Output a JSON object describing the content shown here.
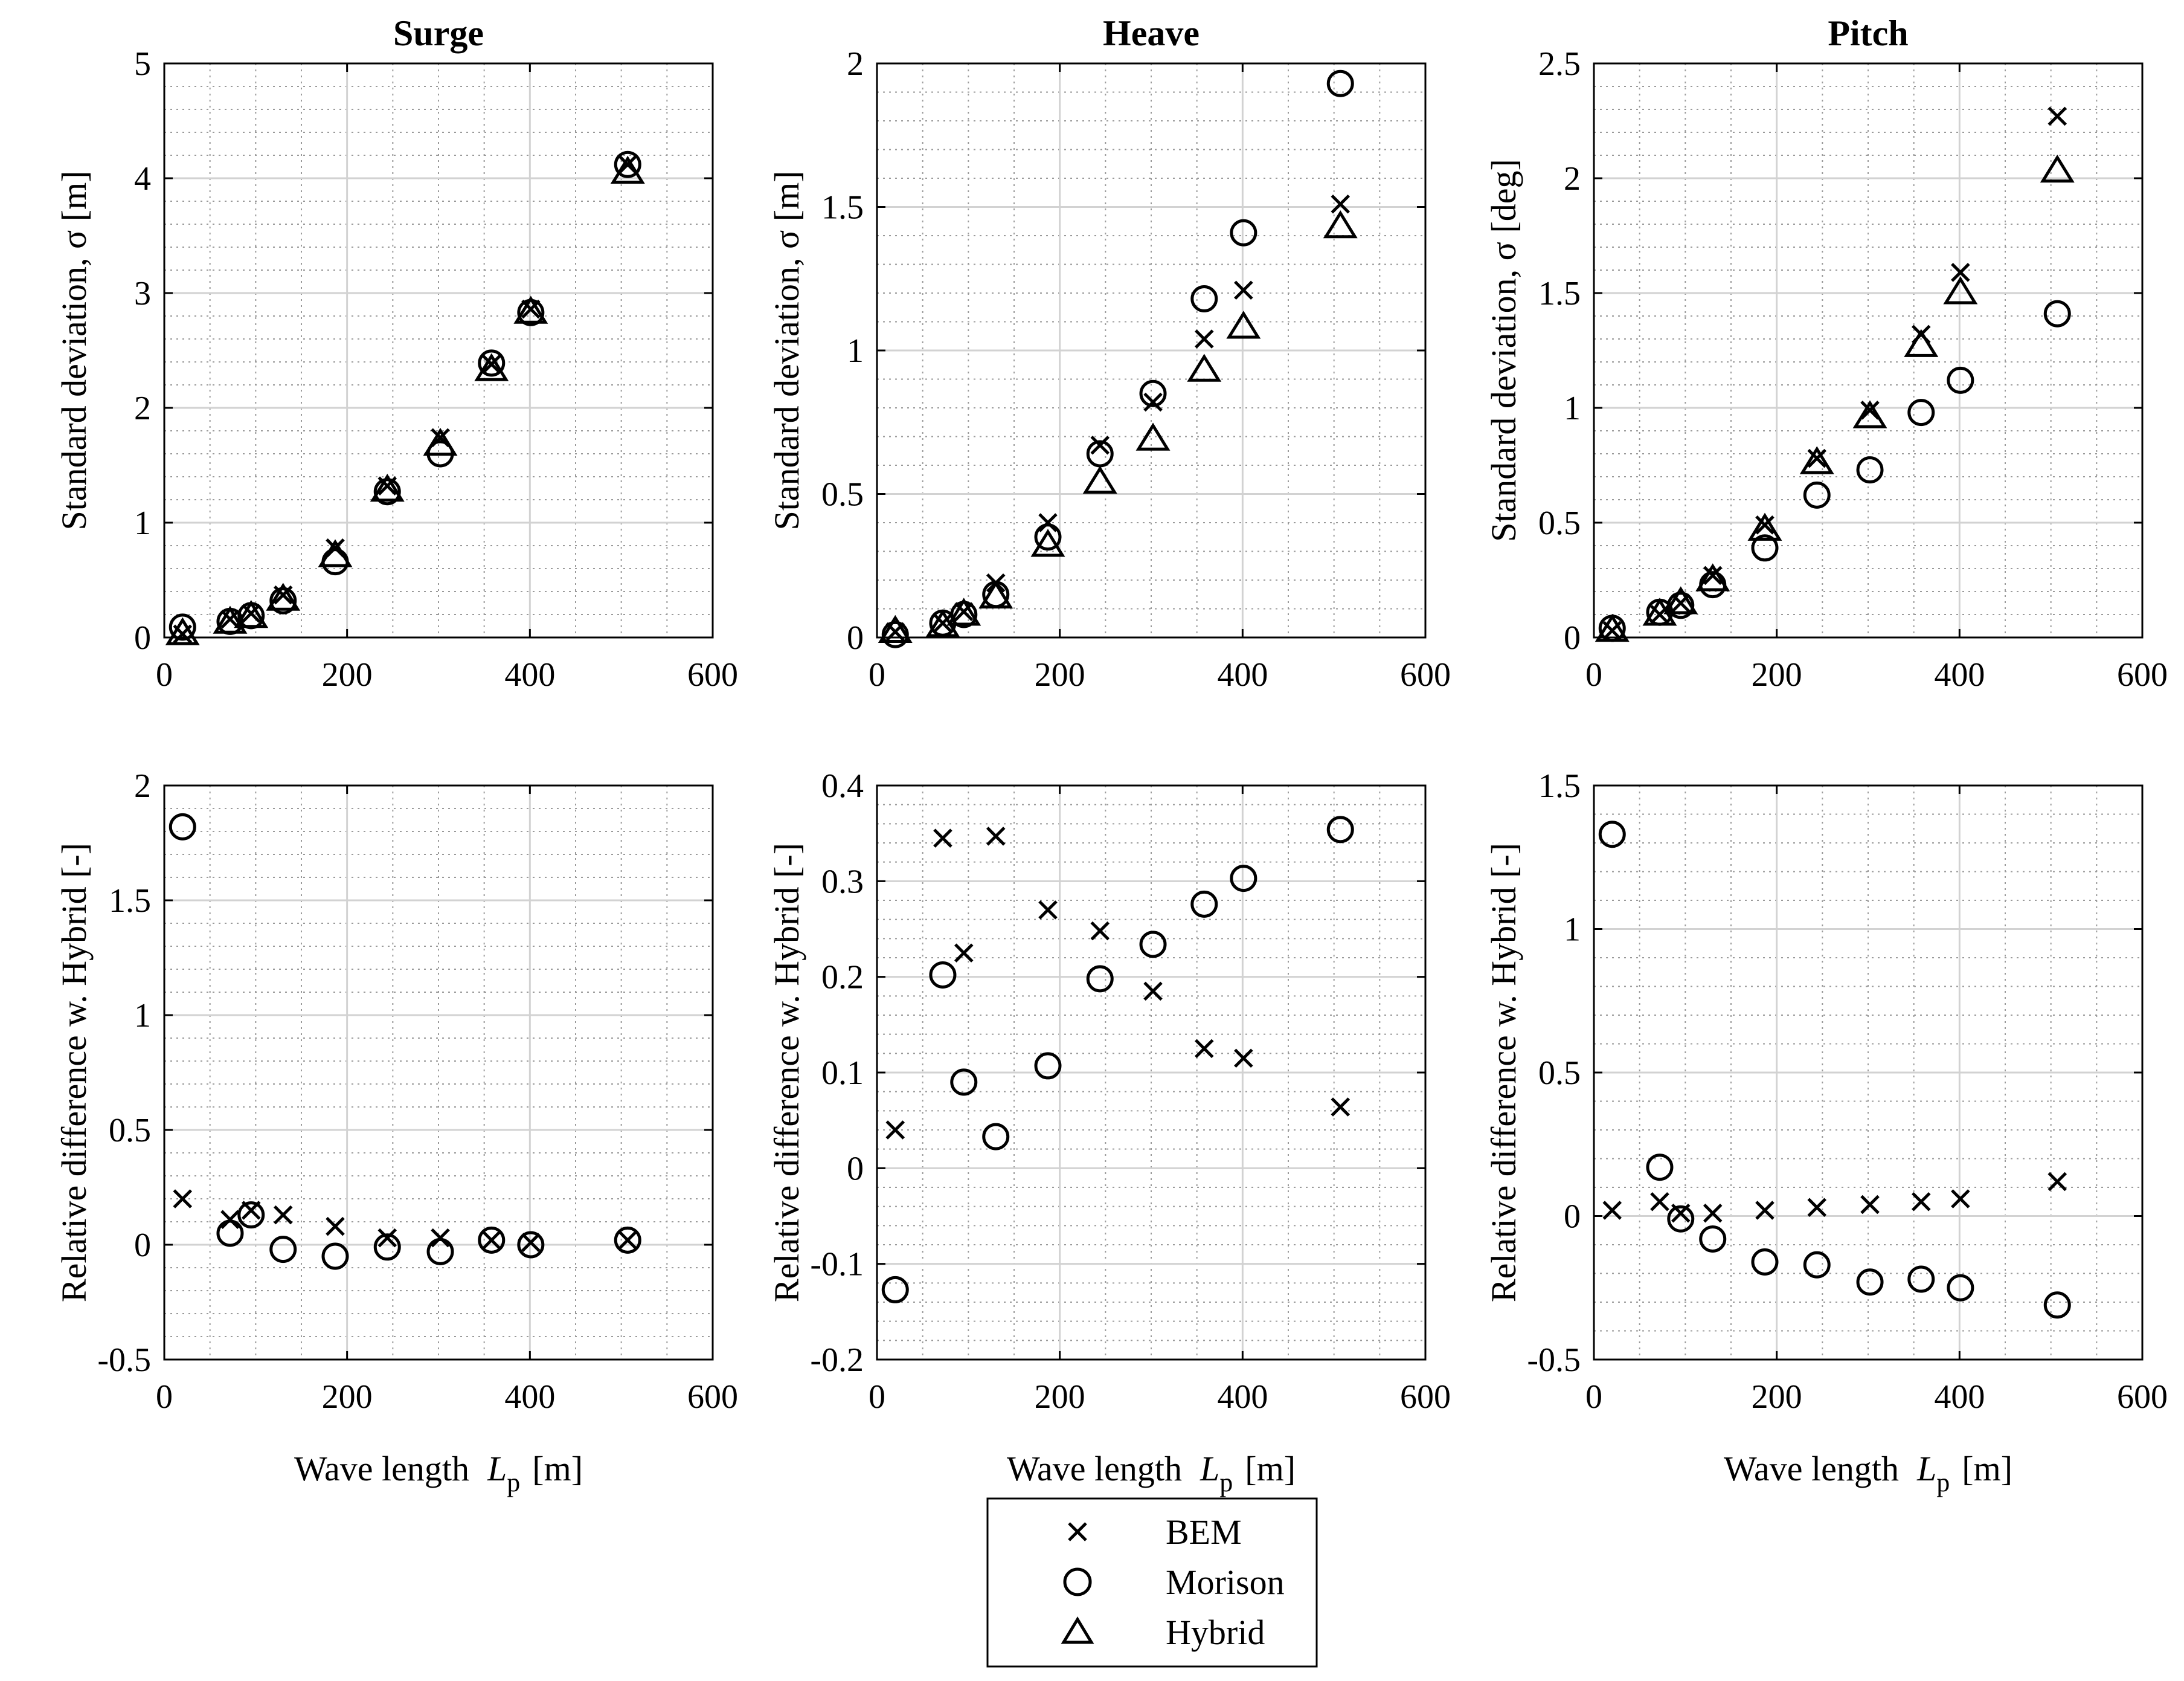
{
  "figure_id": "surge-heave-pitch-comparison",
  "legend": {
    "items": [
      {
        "label": "BEM",
        "marker": "x"
      },
      {
        "label": "Morison",
        "marker": "circle"
      },
      {
        "label": "Hybrid",
        "marker": "triangle"
      }
    ]
  },
  "chart_data": [
    {
      "type": "scatter",
      "title": "Surge",
      "xlabel": "",
      "ylabel": "Standard deviation, σ [m]",
      "xlim": [
        0,
        600
      ],
      "ylim": [
        0,
        5
      ],
      "xticks": [
        0,
        200,
        400,
        600
      ],
      "yticks": [
        0,
        1,
        2,
        3,
        4,
        5
      ],
      "xtick_labels": [
        "0",
        "200",
        "400",
        "600"
      ],
      "ytick_labels": [
        "0",
        "1",
        "2",
        "3",
        "4",
        "5"
      ],
      "grid": true,
      "minor_grid": true,
      "series": [
        {
          "name": "BEM",
          "marker": "x",
          "x": [
            20,
            72,
            95,
            130,
            187,
            244,
            302,
            358,
            401,
            507
          ],
          "y": [
            0.03,
            0.16,
            0.21,
            0.37,
            0.78,
            1.32,
            1.74,
            2.38,
            2.86,
            4.12
          ]
        },
        {
          "name": "Morison",
          "marker": "circle",
          "x": [
            20,
            72,
            95,
            130,
            187,
            244,
            302,
            358,
            401,
            507
          ],
          "y": [
            0.09,
            0.14,
            0.19,
            0.32,
            0.66,
            1.27,
            1.6,
            2.39,
            2.83,
            4.12
          ]
        },
        {
          "name": "Hybrid",
          "marker": "triangle",
          "x": [
            20,
            72,
            95,
            130,
            187,
            244,
            302,
            358,
            401,
            507
          ],
          "y": [
            0.03,
            0.13,
            0.18,
            0.33,
            0.71,
            1.28,
            1.68,
            2.33,
            2.83,
            4.05
          ]
        }
      ]
    },
    {
      "type": "scatter",
      "title": "Heave",
      "xlabel": "",
      "ylabel": "Standard deviation, σ [m]",
      "xlim": [
        0,
        600
      ],
      "ylim": [
        0,
        2
      ],
      "xticks": [
        0,
        200,
        400,
        600
      ],
      "yticks": [
        0,
        0.5,
        1,
        1.5,
        2
      ],
      "xtick_labels": [
        "0",
        "200",
        "400",
        "600"
      ],
      "ytick_labels": [
        "0",
        "0.5",
        "1",
        "1.5",
        "2"
      ],
      "grid": true,
      "minor_grid": true,
      "series": [
        {
          "name": "BEM",
          "marker": "x",
          "x": [
            20,
            72,
            95,
            130,
            187,
            244,
            302,
            358,
            401,
            507
          ],
          "y": [
            0.02,
            0.05,
            0.09,
            0.19,
            0.4,
            0.67,
            0.82,
            1.04,
            1.21,
            1.51
          ]
        },
        {
          "name": "Morison",
          "marker": "circle",
          "x": [
            20,
            72,
            95,
            130,
            187,
            244,
            302,
            358,
            401,
            507
          ],
          "y": [
            0.01,
            0.05,
            0.08,
            0.15,
            0.35,
            0.64,
            0.85,
            1.18,
            1.41,
            1.93
          ]
        },
        {
          "name": "Hybrid",
          "marker": "triangle",
          "x": [
            20,
            72,
            95,
            130,
            187,
            244,
            302,
            358,
            401,
            507
          ],
          "y": [
            0.02,
            0.04,
            0.08,
            0.14,
            0.32,
            0.54,
            0.69,
            0.93,
            1.08,
            1.43
          ]
        }
      ]
    },
    {
      "type": "scatter",
      "title": "Pitch",
      "xlabel": "",
      "ylabel": "Standard deviation, σ [deg]",
      "xlim": [
        0,
        600
      ],
      "ylim": [
        0,
        2.5
      ],
      "xticks": [
        0,
        200,
        400,
        600
      ],
      "yticks": [
        0,
        0.5,
        1,
        1.5,
        2,
        2.5
      ],
      "xtick_labels": [
        "0",
        "200",
        "400",
        "600"
      ],
      "ytick_labels": [
        "0",
        "0.5",
        "1",
        "1.5",
        "2",
        "2.5"
      ],
      "grid": true,
      "minor_grid": true,
      "series": [
        {
          "name": "BEM",
          "marker": "x",
          "x": [
            20,
            72,
            95,
            130,
            187,
            244,
            302,
            358,
            401,
            507
          ],
          "y": [
            0.03,
            0.1,
            0.15,
            0.27,
            0.49,
            0.78,
            0.99,
            1.32,
            1.59,
            2.27
          ]
        },
        {
          "name": "Morison",
          "marker": "circle",
          "x": [
            20,
            72,
            95,
            130,
            187,
            244,
            302,
            358,
            401,
            507
          ],
          "y": [
            0.04,
            0.11,
            0.14,
            0.23,
            0.39,
            0.62,
            0.73,
            0.98,
            1.12,
            1.41
          ]
        },
        {
          "name": "Hybrid",
          "marker": "triangle",
          "x": [
            20,
            72,
            95,
            130,
            187,
            244,
            302,
            358,
            401,
            507
          ],
          "y": [
            0.03,
            0.1,
            0.15,
            0.25,
            0.47,
            0.76,
            0.96,
            1.27,
            1.5,
            2.03
          ]
        }
      ]
    },
    {
      "type": "scatter",
      "title": "",
      "xlabel": "Wave length",
      "xlabel_symbol": "L",
      "xlabel_subscript": "p",
      "xlabel_unit": "[m]",
      "ylabel": "Relative difference w. Hybrid [-]",
      "xlim": [
        0,
        600
      ],
      "ylim": [
        -0.5,
        2
      ],
      "xticks": [
        0,
        200,
        400,
        600
      ],
      "yticks": [
        -0.5,
        0,
        0.5,
        1,
        1.5,
        2
      ],
      "xtick_labels": [
        "0",
        "200",
        "400",
        "600"
      ],
      "ytick_labels": [
        "-0.5",
        "0",
        "0.5",
        "1",
        "1.5",
        "2"
      ],
      "grid": true,
      "minor_grid": true,
      "series": [
        {
          "name": "BEM",
          "marker": "x",
          "x": [
            20,
            72,
            95,
            130,
            187,
            244,
            302,
            358,
            401,
            507
          ],
          "y": [
            0.2,
            0.11,
            0.15,
            0.13,
            0.08,
            0.03,
            0.03,
            0.02,
            0.01,
            0.02
          ]
        },
        {
          "name": "Morison",
          "marker": "circle",
          "x": [
            20,
            72,
            95,
            130,
            187,
            244,
            302,
            358,
            401,
            507
          ],
          "y": [
            1.82,
            0.05,
            0.13,
            -0.02,
            -0.05,
            -0.01,
            -0.03,
            0.02,
            0.0,
            0.02
          ]
        }
      ]
    },
    {
      "type": "scatter",
      "title": "",
      "xlabel": "Wave length",
      "xlabel_symbol": "L",
      "xlabel_subscript": "p",
      "xlabel_unit": "[m]",
      "ylabel": "Relative difference w. Hybrid [-]",
      "xlim": [
        0,
        600
      ],
      "ylim": [
        -0.2,
        0.4
      ],
      "xticks": [
        0,
        200,
        400,
        600
      ],
      "yticks": [
        -0.2,
        -0.1,
        0,
        0.1,
        0.2,
        0.3,
        0.4
      ],
      "xtick_labels": [
        "0",
        "200",
        "400",
        "600"
      ],
      "ytick_labels": [
        "-0.2",
        "-0.1",
        "0",
        "0.1",
        "0.2",
        "0.3",
        "0.4"
      ],
      "grid": true,
      "minor_grid": true,
      "series": [
        {
          "name": "BEM",
          "marker": "x",
          "x": [
            20,
            72,
            95,
            130,
            187,
            244,
            302,
            358,
            401,
            507
          ],
          "y": [
            0.04,
            0.345,
            0.225,
            0.347,
            0.27,
            0.248,
            0.185,
            0.125,
            0.115,
            0.064
          ]
        },
        {
          "name": "Morison",
          "marker": "circle",
          "x": [
            20,
            72,
            95,
            130,
            187,
            244,
            302,
            358,
            401,
            507
          ],
          "y": [
            -0.127,
            0.202,
            0.09,
            0.033,
            0.107,
            0.198,
            0.234,
            0.276,
            0.303,
            0.354
          ]
        }
      ]
    },
    {
      "type": "scatter",
      "title": "",
      "xlabel": "Wave length",
      "xlabel_symbol": "L",
      "xlabel_subscript": "p",
      "xlabel_unit": "[m]",
      "ylabel": "Relative difference w. Hybrid [-]",
      "xlim": [
        0,
        600
      ],
      "ylim": [
        -0.5,
        1.5
      ],
      "xticks": [
        0,
        200,
        400,
        600
      ],
      "yticks": [
        -0.5,
        0,
        0.5,
        1,
        1.5
      ],
      "xtick_labels": [
        "0",
        "200",
        "400",
        "600"
      ],
      "ytick_labels": [
        "-0.5",
        "0",
        "0.5",
        "1",
        "1.5"
      ],
      "grid": true,
      "minor_grid": true,
      "series": [
        {
          "name": "BEM",
          "marker": "x",
          "x": [
            20,
            72,
            95,
            130,
            187,
            244,
            302,
            358,
            401,
            507
          ],
          "y": [
            0.02,
            0.05,
            0.01,
            0.01,
            0.02,
            0.03,
            0.04,
            0.05,
            0.06,
            0.12
          ]
        },
        {
          "name": "Morison",
          "marker": "circle",
          "x": [
            20,
            72,
            95,
            130,
            187,
            244,
            302,
            358,
            401,
            507
          ],
          "y": [
            1.33,
            0.17,
            -0.01,
            -0.08,
            -0.16,
            -0.17,
            -0.23,
            -0.22,
            -0.25,
            -0.31
          ]
        }
      ]
    }
  ]
}
